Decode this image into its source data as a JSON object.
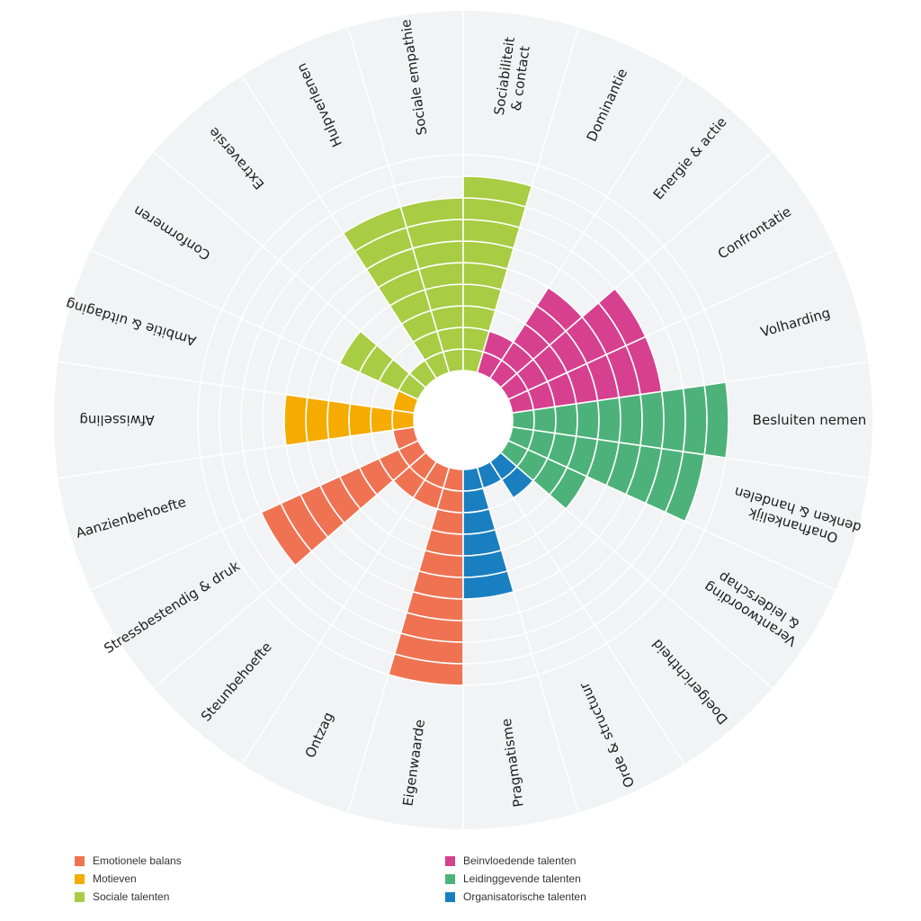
{
  "chart_data": {
    "type": "polar-bar",
    "levels": 10,
    "categories": [
      "Eigenwaarde",
      "Ontzag",
      "Steunbehoefte",
      "Stressbestendig & druk",
      "Aanzienbehoefte",
      "Afwisseling",
      "Ambitie & uitdaging",
      "Conformeren",
      "Extraversie",
      "Hulpverlenen",
      "Sociale empathie",
      "Sociabiliteit & contact",
      "Dominantie",
      "Energie & actie",
      "Confrontatie",
      "Volharding",
      "Besluiten nemen",
      "Onafhankelijk denken & handelen",
      "Verantwoording & leiderschap",
      "Doelgerichtheid",
      "Orde & structuur",
      "Pragmatisme"
    ],
    "values": [
      10,
      2,
      2,
      8,
      1,
      6,
      1,
      4,
      1,
      8,
      8,
      9,
      2,
      5,
      7,
      7,
      10,
      9,
      4,
      2,
      1,
      6
    ],
    "groups": [
      "Emotionele balans",
      "Emotionele balans",
      "Emotionele balans",
      "Emotionele balans",
      "Emotionele balans",
      "Motieven",
      "Motieven",
      "Sociale talenten",
      "Sociale talenten",
      "Sociale talenten",
      "Sociale talenten",
      "Sociale talenten",
      "Beinvloedende talenten",
      "Beinvloedende talenten",
      "Beinvloedende talenten",
      "Beinvloedende talenten",
      "Leidinggevende talenten",
      "Leidinggevende talenten",
      "Leidinggevende talenten",
      "Organisatorische talenten",
      "Organisatorische talenten",
      "Organisatorische talenten"
    ],
    "legend": [
      {
        "label": "Emotionele balans",
        "color": "#ef7352"
      },
      {
        "label": "Motieven",
        "color": "#f5ab00"
      },
      {
        "label": "Sociale talenten",
        "color": "#a8cc43"
      },
      {
        "label": "Beinvloedende talenten",
        "color": "#d6408f"
      },
      {
        "label": "Leidinggevende talenten",
        "color": "#4db27a"
      },
      {
        "label": "Organisatorische talenten",
        "color": "#1a7fc1"
      }
    ],
    "colors": {
      "Emotionele balans": "#ef7352",
      "Motieven": "#f5ab00",
      "Sociale talenten": "#a8cc43",
      "Beinvloedende talenten": "#d6408f",
      "Leidinggevende talenten": "#4db27a",
      "Organisatorische talenten": "#1a7fc1"
    },
    "background_color": "#f2f3f4",
    "legend_position": "bottom"
  }
}
